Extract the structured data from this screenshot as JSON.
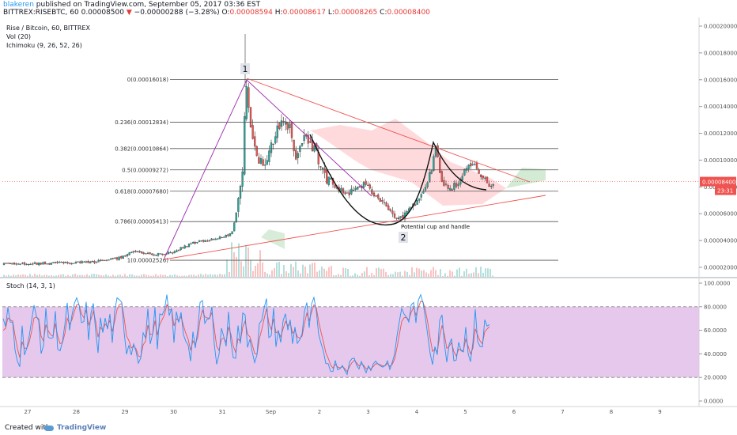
{
  "header": {
    "author": "blakeren",
    "published_text": "published on TradingView.com, September 05, 2017 03:36 EST",
    "symbol_line": "BITTREX:RISEBTC, 60",
    "last": "0.00008500",
    "arrow": "▼",
    "change": "−0.00000288 (−3.28%)",
    "open_label": "O:",
    "open": "0.00008594",
    "high_label": "H:",
    "high": "0.00008617",
    "low_label": "L:",
    "low": "0.00008265",
    "close_label": "C:",
    "close": "0.00008400"
  },
  "legend": {
    "title": "Rise / Bitcoin, 60, BITTREX",
    "vol": "Vol (20)",
    "ichimoku": "Ichimoku (9, 26, 52, 26)",
    "stoch": "Stoch (14, 3, 1)"
  },
  "price_axis": {
    "ticks": [
      "0.00020000",
      "0.00018000",
      "0.00016000",
      "0.00014000",
      "0.00012000",
      "0.00010000",
      "0.00008000",
      "0.00006000",
      "0.00004000",
      "0.00002000"
    ],
    "current_price": "0.00008400",
    "countdown": "23:31"
  },
  "stoch_axis": {
    "ticks": [
      "100.0000",
      "80.0000",
      "60.0000",
      "40.0000",
      "20.0000",
      "0.0000"
    ]
  },
  "time_axis": {
    "labels": [
      "27",
      "28",
      "29",
      "30",
      "31",
      "Sep",
      "2",
      "3",
      "4",
      "5",
      "6",
      "7",
      "8",
      "9"
    ]
  },
  "fib_levels": [
    {
      "label": "0(0.00016018)",
      "value": 0.00016018
    },
    {
      "label": "0.236(0.00012834)",
      "value": 0.00012834
    },
    {
      "label": "0.382(0.00010864)",
      "value": 0.00010864
    },
    {
      "label": "0.5(0.00009272)",
      "value": 9.272e-05
    },
    {
      "label": "0.618(0.00007680)",
      "value": 7.68e-05
    },
    {
      "label": "0.786(0.00005413)",
      "value": 5.413e-05
    },
    {
      "label": "1(0.00002526)",
      "value": 2.526e-05
    }
  ],
  "annotations": {
    "point1": "1",
    "point2": "2",
    "pattern": "Potential cup and handle"
  },
  "colors": {
    "up": "#26a69a",
    "down": "#ef5350",
    "accent_blue": "#2196f3",
    "fib_line": "#555555",
    "trend_line": "#ef5350",
    "wave_line": "#9c27b0",
    "stoch_k": "#2196f3",
    "stoch_d": "#ef5350",
    "stoch_band": "#e1bee7",
    "cloud_red": "#ffcdd2",
    "cloud_green": "#c8e6c9"
  },
  "chart_data": [
    {
      "type": "line",
      "title": "Rise / Bitcoin, 60, BITTREX",
      "x": [
        "27",
        "28",
        "29",
        "29.6",
        "30",
        "30.6",
        "31",
        "31.2",
        "31.4",
        "31.7",
        "Sep",
        "1.3",
        "1.6",
        "2",
        "2.4",
        "2.8",
        "3",
        "3.2",
        "3.4",
        "3.7",
        "4",
        "4.2",
        "4.4",
        "4.7",
        "5",
        "5.2",
        "5.35"
      ],
      "series": [
        {
          "values": [
            2.15e-05,
            2.25e-05,
            2.7e-05,
            2.55e-05,
            3.3e-05,
            4.2e-05,
            8e-05,
            0.00016,
            0.0001,
            0.00011,
            0.000132,
            0.0001,
            0.000112,
            8.5e-05,
            7.8e-05,
            7.2e-05,
            6e-05,
            5.5e-05,
            6e-05,
            7e-05,
            9.5e-05,
            9e-05,
            8.3e-05,
            9e-05,
            9.7e-05,
            8.5e-05,
            8.4e-05
          ]
        }
      ],
      "ylim": [
        1.25e-05,
        0.000205
      ],
      "ylabel": ""
    },
    {
      "type": "line",
      "title": "Stoch (14, 3, 1)",
      "x": [
        "27",
        "28",
        "29",
        "30",
        "31",
        "Sep",
        "2",
        "3",
        "4",
        "5",
        "5.35"
      ],
      "series": [
        {
          "values": [
            45,
            75,
            55,
            70,
            85,
            60,
            30,
            10,
            80,
            65,
            25
          ]
        },
        {
          "values": [
            50,
            70,
            60,
            65,
            80,
            62,
            35,
            15,
            75,
            68,
            30
          ]
        }
      ],
      "ylim": [
        -5,
        103
      ]
    }
  ]
}
